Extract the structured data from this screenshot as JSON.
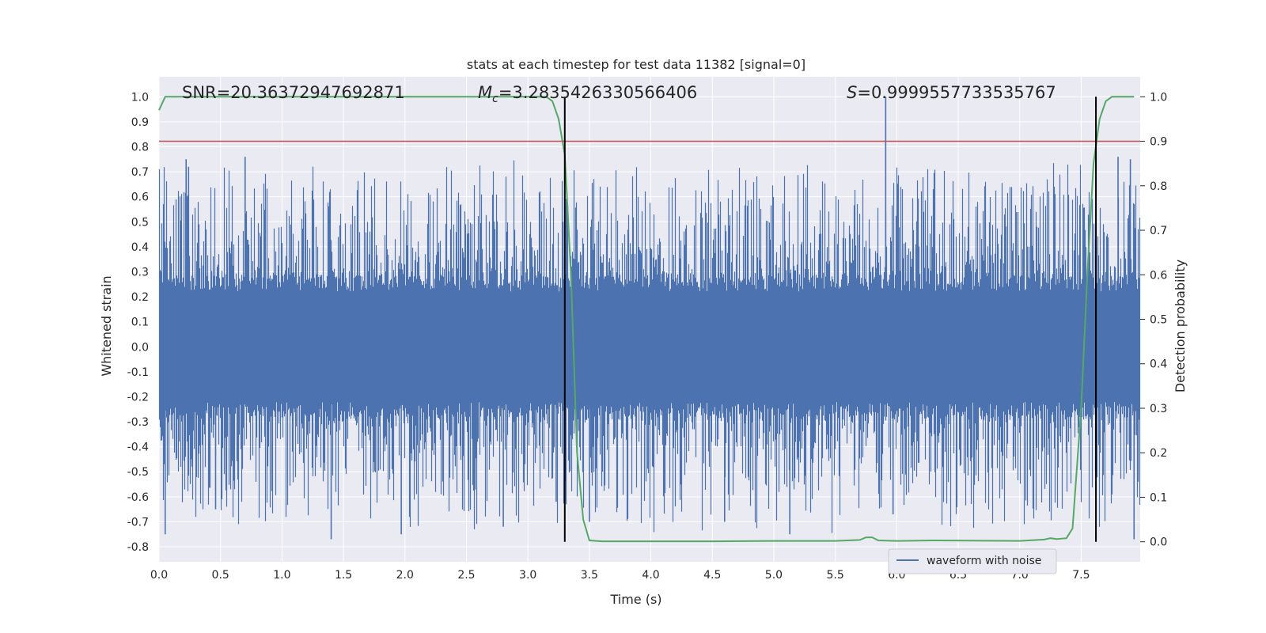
{
  "chart_data": {
    "type": "line",
    "title": "stats at each timestep for test data 11382 [signal=0]",
    "xlabel": "Time (s)",
    "ylabel_left": "Whitened strain",
    "ylabel_right": "Detection probability",
    "xlim": [
      0.0,
      7.98
    ],
    "ylim_left": [
      -0.86,
      1.08
    ],
    "ylim_right": [
      -0.045,
      1.045
    ],
    "x_ticks": [
      "0.0",
      "0.5",
      "1.0",
      "1.5",
      "2.0",
      "2.5",
      "3.0",
      "3.5",
      "4.0",
      "4.5",
      "5.0",
      "5.5",
      "6.0",
      "6.5",
      "7.0",
      "7.5"
    ],
    "y_left_ticks": [
      "1.0",
      "0.9",
      "0.8",
      "0.7",
      "0.6",
      "0.5",
      "0.4",
      "0.3",
      "0.2",
      "0.1",
      "0.0",
      "-0.1",
      "-0.2",
      "-0.3",
      "-0.4",
      "-0.5",
      "-0.6",
      "-0.7",
      "-0.8"
    ],
    "y_right_ticks": [
      "1.0",
      "0.9",
      "0.8",
      "0.7",
      "0.6",
      "0.5",
      "0.4",
      "0.3",
      "0.2",
      "0.1",
      "0.0"
    ],
    "grid": true,
    "legend_position": "bottom-right",
    "annotations": {
      "snr": "SNR=20.36372947692871",
      "mc_symbol": "M",
      "mc_sub": "c",
      "mc_value": "=3.2835426330566406",
      "s_symbol": "S",
      "s_value": "=0.9999557733535767"
    },
    "series": [
      {
        "name": "waveform with noise",
        "axis": "left",
        "color": "#4c72b0",
        "description_envelope": {
          "typical_max": 0.42,
          "typical_min": -0.42,
          "spikes": [
            {
              "x": 0.05,
              "y": -0.75
            },
            {
              "x": 0.22,
              "y": 0.75
            },
            {
              "x": 0.24,
              "y": 0.72
            },
            {
              "x": 0.7,
              "y": 0.76
            },
            {
              "x": 0.46,
              "y": -0.65
            },
            {
              "x": 1.4,
              "y": -0.77
            },
            {
              "x": 1.97,
              "y": -0.75
            },
            {
              "x": 2.8,
              "y": -0.72
            },
            {
              "x": 3.23,
              "y": -0.62
            },
            {
              "x": 3.3,
              "y": 0.62
            },
            {
              "x": 3.5,
              "y": -0.7
            },
            {
              "x": 4.6,
              "y": -0.7
            },
            {
              "x": 5.13,
              "y": -0.75
            },
            {
              "x": 5.91,
              "y": 1.0
            },
            {
              "x": 5.97,
              "y": -0.67
            },
            {
              "x": 7.8,
              "y": 0.76
            },
            {
              "x": 7.93,
              "y": -0.77
            },
            {
              "x": 7.9,
              "y": 0.75
            }
          ]
        }
      },
      {
        "name": "",
        "axis": "right",
        "color": "#55a868",
        "x": [
          0.0,
          0.05,
          0.1,
          3.15,
          3.2,
          3.25,
          3.3,
          3.35,
          3.4,
          3.45,
          3.5,
          3.6,
          4.0,
          4.5,
          5.0,
          5.5,
          5.7,
          5.75,
          5.8,
          5.85,
          6.0,
          6.3,
          7.0,
          7.2,
          7.25,
          7.3,
          7.38,
          7.43,
          7.5,
          7.55,
          7.6,
          7.65,
          7.7,
          7.75,
          7.8,
          7.93
        ],
        "y": [
          0.97,
          1.0,
          1.0,
          1.0,
          0.99,
          0.95,
          0.87,
          0.6,
          0.2,
          0.05,
          0.003,
          0.001,
          0.001,
          0.001,
          0.002,
          0.002,
          0.004,
          0.01,
          0.01,
          0.003,
          0.002,
          0.003,
          0.002,
          0.005,
          0.008,
          0.006,
          0.008,
          0.03,
          0.3,
          0.6,
          0.85,
          0.95,
          0.99,
          1.0,
          1.0,
          1.0
        ]
      },
      {
        "name": "",
        "axis": "right",
        "color": "#c44e52",
        "type": "hline",
        "y": 0.9
      }
    ],
    "vlines": [
      3.3,
      7.62
    ]
  },
  "colors": {
    "plot_bg": "#eaeaf2",
    "grid": "#ffffff",
    "waveform": "#4c72b0",
    "probability": "#55a868",
    "threshold": "#c44e52",
    "vline": "#000000"
  }
}
